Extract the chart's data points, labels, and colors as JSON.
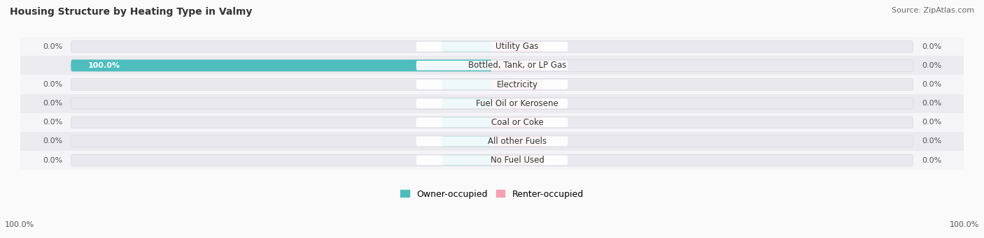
{
  "title": "Housing Structure by Heating Type in Valmy",
  "source": "Source: ZipAtlas.com",
  "categories": [
    "Utility Gas",
    "Bottled, Tank, or LP Gas",
    "Electricity",
    "Fuel Oil or Kerosene",
    "Coal or Coke",
    "All other Fuels",
    "No Fuel Used"
  ],
  "owner_values": [
    0.0,
    100.0,
    0.0,
    0.0,
    0.0,
    0.0,
    0.0
  ],
  "renter_values": [
    0.0,
    0.0,
    0.0,
    0.0,
    0.0,
    0.0,
    0.0
  ],
  "owner_color": "#4DBDBD",
  "renter_color": "#F4A0B5",
  "bar_bg_color": "#E8E8EE",
  "bar_bg_outline": "#D8D8DE",
  "background_color": "#FAFAFA",
  "row_bg_even": "#F5F5F8",
  "row_bg_odd": "#EBEBEF",
  "label_bg": "#FFFFFF",
  "title_fontsize": 10,
  "source_fontsize": 8,
  "value_fontsize": 8,
  "cat_fontsize": 8.5,
  "legend_fontsize": 9,
  "x_max": 100.0,
  "x_left_label": "100.0%",
  "x_right_label": "100.0%",
  "small_bar_width": 12.0
}
